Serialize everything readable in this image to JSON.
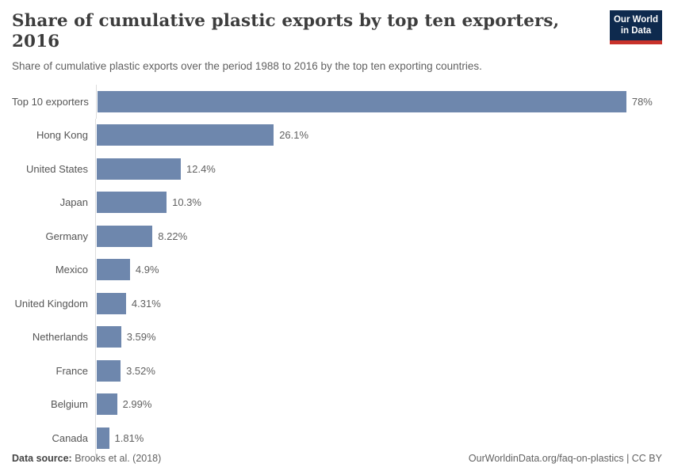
{
  "header": {
    "title": "Share of cumulative plastic exports by top ten exporters, 2016",
    "subtitle": "Share of cumulative plastic exports over the period 1988 to 2016 by the top ten exporting countries.",
    "logo": {
      "line1": "Our World",
      "line2": "in Data"
    }
  },
  "chart_data": {
    "type": "bar",
    "orientation": "horizontal",
    "title": "Share of cumulative plastic exports by top ten exporters, 2016",
    "subtitle": "Share of cumulative plastic exports over the period 1988 to 2016 by the top ten exporting countries.",
    "categories": [
      "Top 10 exporters",
      "Hong Kong",
      "United States",
      "Japan",
      "Germany",
      "Mexico",
      "United Kingdom",
      "Netherlands",
      "France",
      "Belgium",
      "Canada"
    ],
    "values": [
      78,
      26.1,
      12.4,
      10.3,
      8.22,
      4.9,
      4.31,
      3.59,
      3.52,
      2.99,
      1.81
    ],
    "value_labels": [
      "78%",
      "26.1%",
      "12.4%",
      "10.3%",
      "8.22%",
      "4.9%",
      "4.31%",
      "3.59%",
      "3.52%",
      "2.99%",
      "1.81%"
    ],
    "xlabel": "",
    "ylabel": "",
    "xlim": [
      0,
      78
    ],
    "grid": false,
    "legend": "none",
    "bar_color": "#6e87ad"
  },
  "footer": {
    "datasource_label": "Data source:",
    "datasource_value": "Brooks et al. (2018)",
    "credit": "OurWorldinData.org/faq-on-plastics | CC BY"
  },
  "colors": {
    "bar": "#6e87ad",
    "title": "#3d3d3d",
    "subtitle": "#616161",
    "label": "#555555",
    "value": "#616161",
    "axis": "#dddddd",
    "logo_bg": "#0e2a4e",
    "logo_red": "#c8322b"
  }
}
